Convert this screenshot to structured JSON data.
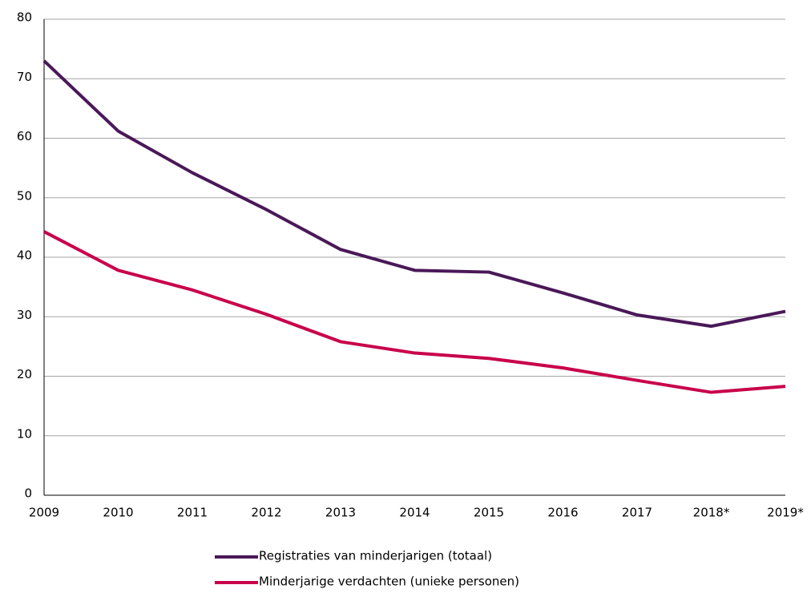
{
  "chart_data": {
    "type": "line",
    "categories": [
      "2009",
      "2010",
      "2011",
      "2012",
      "2013",
      "2014",
      "2015",
      "2016",
      "2017",
      "2018*",
      "2019*"
    ],
    "series": [
      {
        "name": "Registraties van minderjarigen (totaal)",
        "color": "#4a1858",
        "values": [
          73,
          61.2,
          54.2,
          48,
          41.3,
          37.8,
          37.5,
          34,
          30.3,
          28.4,
          30.9
        ]
      },
      {
        "name": "Minderjarige verdachten (unieke personen)",
        "color": "#c8004b",
        "values": [
          44.3,
          37.8,
          34.5,
          30.4,
          25.8,
          23.9,
          23,
          21.4,
          19.3,
          17.3,
          18.3
        ]
      }
    ],
    "ylim": [
      0,
      80
    ],
    "yticks": [
      0,
      10,
      20,
      30,
      40,
      50,
      60,
      70,
      80
    ],
    "grid": true,
    "legend": "bottom"
  }
}
